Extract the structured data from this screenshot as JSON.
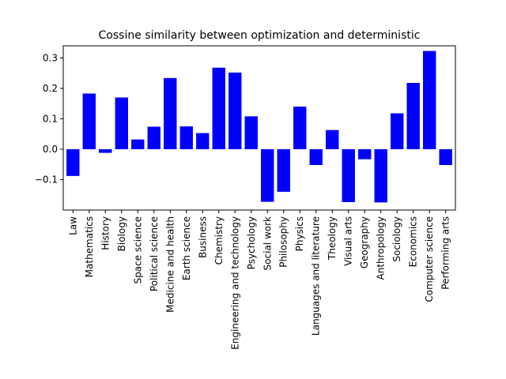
{
  "chart_data": {
    "type": "bar",
    "title": "Cossine similarity between optimization and deterministic",
    "xlabel": "",
    "ylabel": "",
    "ylim": [
      -0.2,
      0.34
    ],
    "yticks": [
      -0.1,
      0.0,
      0.1,
      0.2,
      0.3
    ],
    "ytick_labels": [
      "−0.1",
      "0.0",
      "0.1",
      "0.2",
      "0.3"
    ],
    "grid": false,
    "bar_color": "#0000ff",
    "categories": [
      "Law",
      "Mathematics",
      "History",
      "Biology",
      "Space science",
      "Political science",
      "Medicine and health",
      "Earth science",
      "Business",
      "Chemistry",
      "Engineering and technology",
      "Psychology",
      "Social work",
      "Philosophy",
      "Physics",
      "Languages and literature",
      "Theology",
      "Visual arts",
      "Geography",
      "Anthropology",
      "Sociology",
      "Economics",
      "Computer science",
      "Performing arts"
    ],
    "values": [
      -0.088,
      0.183,
      -0.012,
      0.17,
      0.032,
      0.074,
      0.234,
      0.075,
      0.053,
      0.268,
      0.252,
      0.108,
      -0.173,
      -0.14,
      0.14,
      -0.052,
      0.063,
      -0.174,
      -0.033,
      -0.175,
      0.118,
      0.218,
      0.323,
      -0.052
    ]
  }
}
